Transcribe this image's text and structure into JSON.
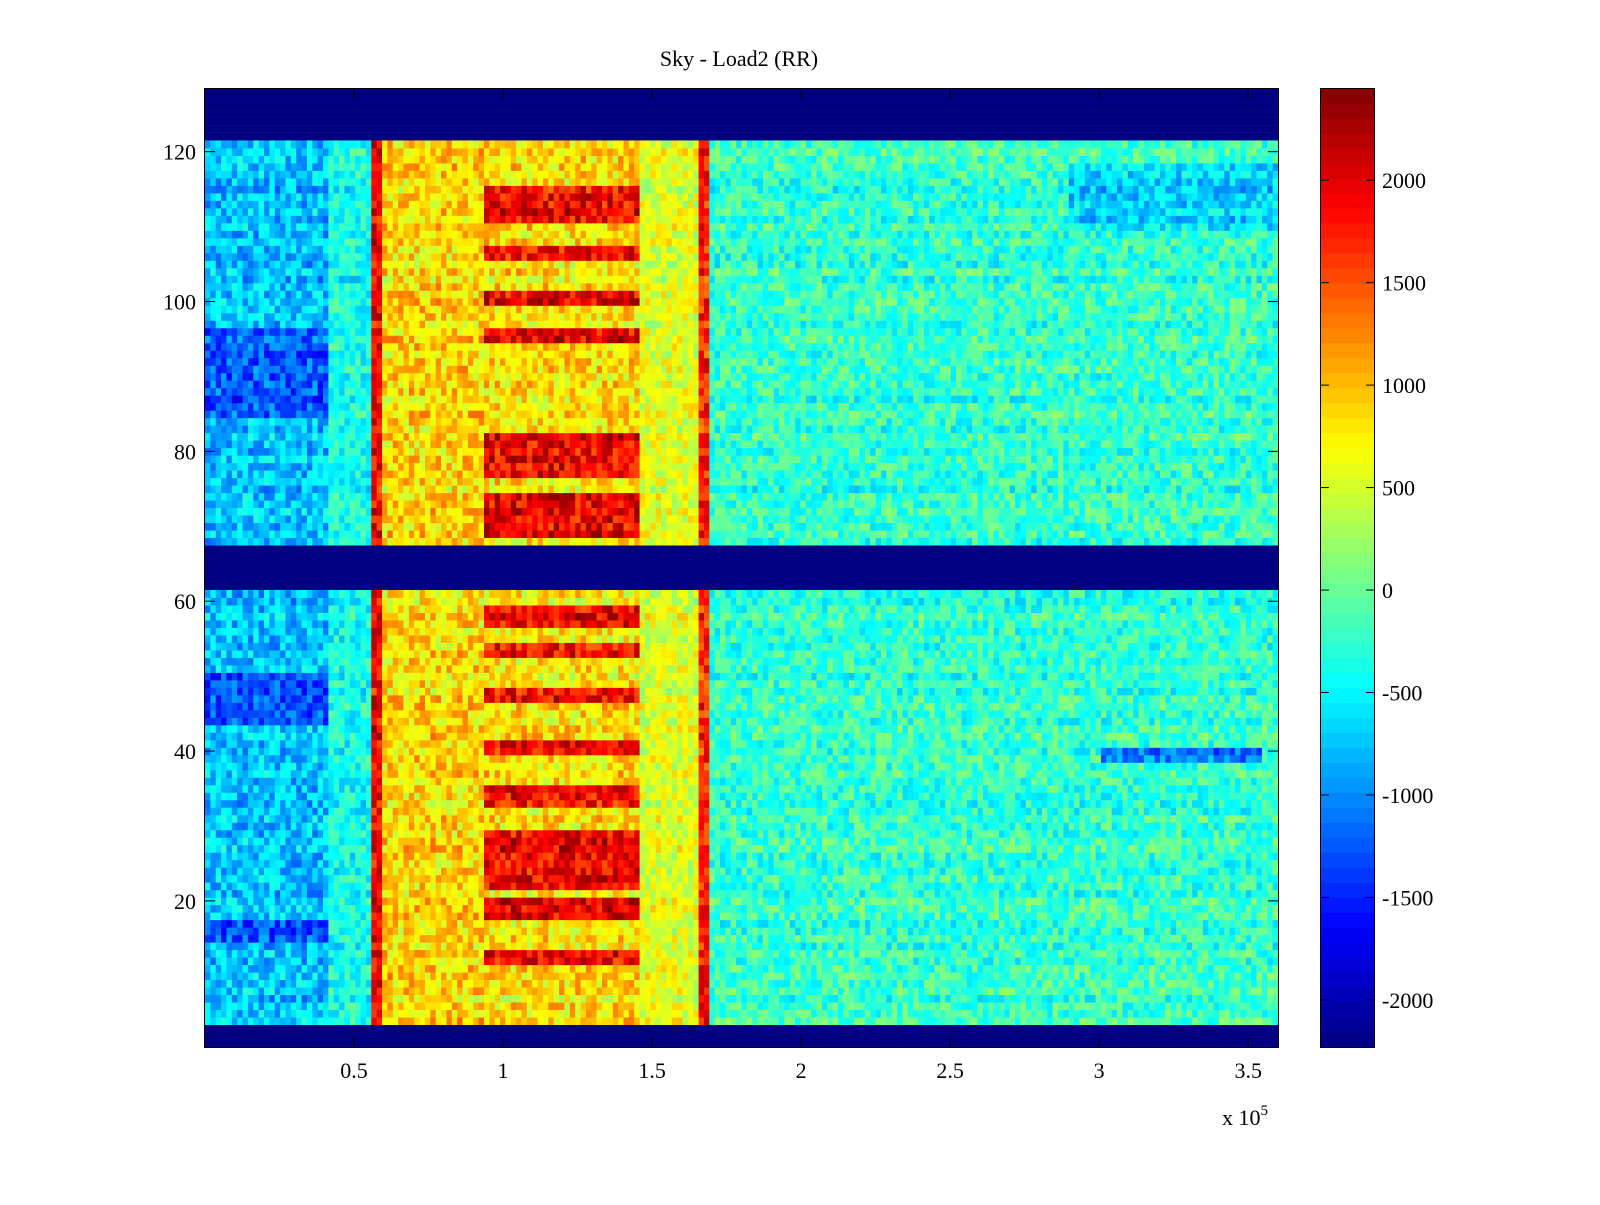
{
  "chart_data": {
    "type": "heatmap",
    "title": "Sky - Load2 (RR)",
    "xlabel": "",
    "ylabel": "",
    "x_multiplier_label": "x 10",
    "x_multiplier_exponent": "5",
    "xlim": [
      0,
      3.6
    ],
    "ylim": [
      0.5,
      128.5
    ],
    "clim": [
      -2230,
      2450
    ],
    "colormap": "jet",
    "x_ticks": [
      {
        "value": 0.5,
        "label": "0.5"
      },
      {
        "value": 1,
        "label": "1"
      },
      {
        "value": 1.5,
        "label": "1.5"
      },
      {
        "value": 2,
        "label": "2"
      },
      {
        "value": 2.5,
        "label": "2.5"
      },
      {
        "value": 3,
        "label": "3"
      },
      {
        "value": 3.5,
        "label": "3.5"
      }
    ],
    "y_ticks": [
      {
        "value": 20,
        "label": "20"
      },
      {
        "value": 40,
        "label": "40"
      },
      {
        "value": 60,
        "label": "60"
      },
      {
        "value": 80,
        "label": "80"
      },
      {
        "value": 100,
        "label": "100"
      },
      {
        "value": 120,
        "label": "120"
      }
    ],
    "colorbar_ticks": [
      {
        "value": 2000,
        "label": "2000"
      },
      {
        "value": 1500,
        "label": "1500"
      },
      {
        "value": 1000,
        "label": "1000"
      },
      {
        "value": 500,
        "label": "500"
      },
      {
        "value": 0,
        "label": "0"
      },
      {
        "value": -500,
        "label": "-500"
      },
      {
        "value": -1000,
        "label": "-1000"
      },
      {
        "value": -1500,
        "label": "-1500"
      },
      {
        "value": -2000,
        "label": "-2000"
      }
    ],
    "masked_rows": [
      [
        1,
        3
      ],
      [
        62,
        67
      ],
      [
        122,
        128
      ]
    ],
    "masked_value": -2230,
    "column_regions": [
      {
        "x": [
          0,
          0.41
        ],
        "mean": -750,
        "noise": 400
      },
      {
        "x": [
          0.41,
          0.56
        ],
        "mean": -400,
        "noise": 350
      },
      {
        "x": [
          0.56,
          0.6
        ],
        "mean": 1900,
        "noise": 400
      },
      {
        "x": [
          0.6,
          0.93
        ],
        "mean": 850,
        "noise": 450
      },
      {
        "x": [
          0.93,
          1.45
        ],
        "mean": 800,
        "noise": 450
      },
      {
        "x": [
          1.45,
          1.65
        ],
        "mean": 550,
        "noise": 350
      },
      {
        "x": [
          1.65,
          1.69
        ],
        "mean": 1700,
        "noise": 400
      },
      {
        "x": [
          1.69,
          3.6
        ],
        "mean": -250,
        "noise": 380
      }
    ],
    "hot_row_bands": {
      "x": [
        0.93,
        1.45
      ],
      "mean": 1900,
      "rows": [
        [
          111,
          115
        ],
        [
          106,
          107
        ],
        [
          100,
          101
        ],
        [
          95,
          96
        ],
        [
          77,
          82
        ],
        [
          69,
          74
        ],
        [
          57,
          59
        ],
        [
          53,
          54
        ],
        [
          47,
          48
        ],
        [
          40,
          41
        ],
        [
          33,
          35
        ],
        [
          28,
          29
        ],
        [
          22,
          27
        ],
        [
          18,
          20
        ],
        [
          12,
          13
        ]
      ]
    },
    "cold_row_bands": [
      {
        "x": [
          0,
          0.41
        ],
        "rows": [
          [
            44,
            50
          ],
          [
            15,
            17
          ],
          [
            85,
            96
          ]
        ],
        "mean": -1250
      },
      {
        "x": [
          2.9,
          3.6
        ],
        "rows": [
          [
            110,
            118
          ]
        ],
        "mean": -650
      },
      {
        "x": [
          3.0,
          3.55
        ],
        "rows": [
          [
            39,
            40
          ]
        ],
        "mean": -1100
      }
    ]
  }
}
